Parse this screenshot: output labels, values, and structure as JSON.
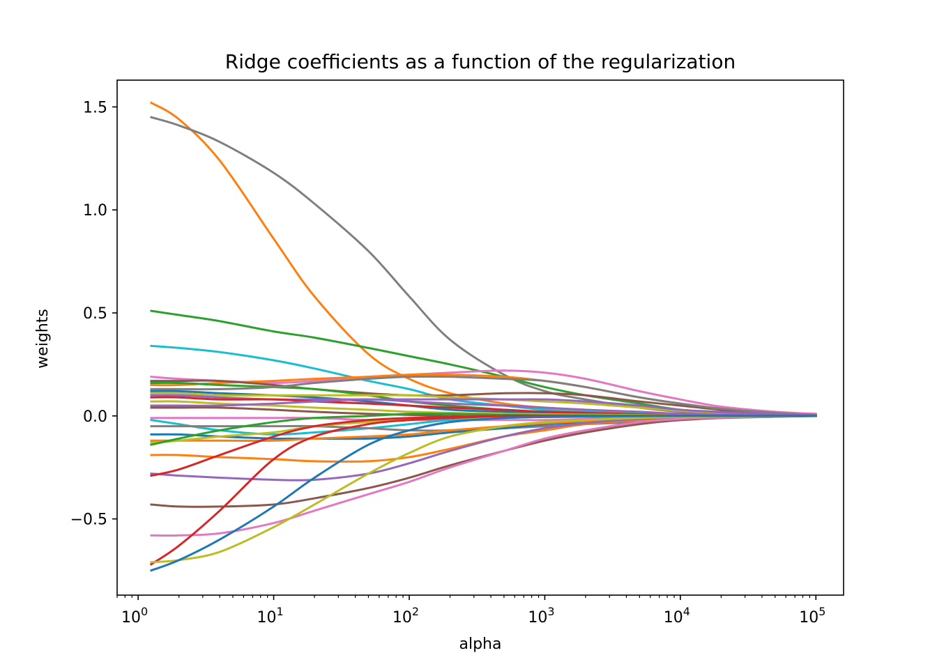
{
  "chart_data": {
    "type": "line",
    "title": "Ridge coefficients as a function of the regularization",
    "xlabel": "alpha",
    "ylabel": "weights",
    "xscale": "log",
    "xlim": [
      0.7,
      160000
    ],
    "ylim": [
      -0.87,
      1.63
    ],
    "grid": false,
    "legend": "none",
    "x": [
      1.25,
      2,
      4,
      10,
      20,
      50,
      100,
      200,
      500,
      1000,
      2000,
      5000,
      10000,
      20000,
      50000,
      100000
    ],
    "xtick_labels": [
      {
        "value": 1,
        "base": "10",
        "exp": "0"
      },
      {
        "value": 10,
        "base": "10",
        "exp": "1"
      },
      {
        "value": 100,
        "base": "10",
        "exp": "2"
      },
      {
        "value": 1000,
        "base": "10",
        "exp": "3"
      },
      {
        "value": 10000,
        "base": "10",
        "exp": "4"
      },
      {
        "value": 100000,
        "base": "10",
        "exp": "5"
      }
    ],
    "yticks": [
      {
        "value": -0.5,
        "label": "−0.5"
      },
      {
        "value": 0.0,
        "label": "0.0"
      },
      {
        "value": 0.5,
        "label": "0.5"
      },
      {
        "value": 1.0,
        "label": "1.0"
      },
      {
        "value": 1.5,
        "label": "1.5"
      }
    ],
    "series": [
      {
        "color": "#ff7f0e",
        "values": [
          1.52,
          1.44,
          1.24,
          0.86,
          0.58,
          0.3,
          0.18,
          0.11,
          0.06,
          0.04,
          0.03,
          0.015,
          0.01,
          0.006,
          0.003,
          0.0
        ]
      },
      {
        "color": "#7f7f7f",
        "values": [
          1.45,
          1.41,
          1.33,
          1.18,
          1.03,
          0.8,
          0.58,
          0.37,
          0.2,
          0.12,
          0.08,
          0.04,
          0.02,
          0.01,
          0.005,
          0.0
        ]
      },
      {
        "color": "#2ca02c",
        "values": [
          0.51,
          0.49,
          0.46,
          0.41,
          0.38,
          0.33,
          0.29,
          0.25,
          0.19,
          0.14,
          0.1,
          0.06,
          0.03,
          0.02,
          0.008,
          0.0
        ]
      },
      {
        "color": "#17becf",
        "values": [
          0.34,
          0.33,
          0.31,
          0.27,
          0.23,
          0.17,
          0.13,
          0.08,
          0.05,
          0.03,
          0.02,
          0.01,
          0.006,
          0.003,
          0.001,
          0.0
        ]
      },
      {
        "color": "#e377c2",
        "values": [
          0.19,
          0.18,
          0.17,
          0.16,
          0.17,
          0.19,
          0.2,
          0.21,
          0.22,
          0.21,
          0.18,
          0.12,
          0.08,
          0.045,
          0.02,
          0.01
        ]
      },
      {
        "color": "#ff7f0e",
        "values": [
          0.15,
          0.15,
          0.16,
          0.17,
          0.18,
          0.19,
          0.2,
          0.2,
          0.19,
          0.17,
          0.14,
          0.09,
          0.06,
          0.035,
          0.015,
          0.005
        ]
      },
      {
        "color": "#8c564b",
        "values": [
          0.17,
          0.17,
          0.17,
          0.15,
          0.13,
          0.11,
          0.1,
          0.1,
          0.11,
          0.11,
          0.1,
          0.07,
          0.05,
          0.03,
          0.012,
          0.005
        ]
      },
      {
        "color": "#2ca02c",
        "values": [
          0.16,
          0.16,
          0.15,
          0.14,
          0.13,
          0.1,
          0.07,
          0.05,
          0.03,
          0.02,
          0.015,
          0.008,
          0.005,
          0.003,
          0.001,
          0.0
        ]
      },
      {
        "color": "#7f7f7f",
        "values": [
          0.13,
          0.13,
          0.13,
          0.14,
          0.16,
          0.18,
          0.19,
          0.19,
          0.18,
          0.17,
          0.14,
          0.09,
          0.06,
          0.035,
          0.015,
          0.005
        ]
      },
      {
        "color": "#1f77b4",
        "values": [
          0.12,
          0.12,
          0.11,
          0.1,
          0.09,
          0.07,
          0.05,
          0.03,
          0.02,
          0.015,
          0.01,
          0.005,
          0.003,
          0.002,
          0.001,
          0.0
        ]
      },
      {
        "color": "#bcbd22",
        "values": [
          0.11,
          0.11,
          0.1,
          0.1,
          0.1,
          0.1,
          0.1,
          0.09,
          0.08,
          0.07,
          0.06,
          0.04,
          0.025,
          0.015,
          0.007,
          0.002
        ]
      },
      {
        "color": "#9467bd",
        "values": [
          0.1,
          0.1,
          0.09,
          0.08,
          0.08,
          0.08,
          0.08,
          0.08,
          0.08,
          0.08,
          0.07,
          0.05,
          0.03,
          0.018,
          0.008,
          0.002
        ]
      },
      {
        "color": "#d62728",
        "values": [
          0.09,
          0.09,
          0.08,
          0.08,
          0.07,
          0.06,
          0.05,
          0.04,
          0.03,
          0.02,
          0.015,
          0.008,
          0.005,
          0.003,
          0.001,
          0.0
        ]
      },
      {
        "color": "#bcbd22",
        "values": [
          0.07,
          0.07,
          0.06,
          0.05,
          0.04,
          0.03,
          0.02,
          0.015,
          0.01,
          0.008,
          0.006,
          0.004,
          0.002,
          0.001,
          0.0,
          0.0
        ]
      },
      {
        "color": "#9467bd",
        "values": [
          0.05,
          0.05,
          0.05,
          0.06,
          0.07,
          0.08,
          0.07,
          0.06,
          0.05,
          0.04,
          0.03,
          0.02,
          0.01,
          0.006,
          0.003,
          0.001
        ]
      },
      {
        "color": "#8c564b",
        "values": [
          0.04,
          0.04,
          0.04,
          0.03,
          0.02,
          0.01,
          0.005,
          0.0,
          -0.005,
          -0.005,
          -0.004,
          -0.003,
          -0.002,
          -0.001,
          0.0,
          0.0
        ]
      },
      {
        "color": "#e377c2",
        "values": [
          -0.01,
          -0.01,
          -0.01,
          -0.01,
          -0.01,
          -0.02,
          -0.02,
          -0.02,
          -0.02,
          -0.02,
          -0.015,
          -0.01,
          -0.006,
          -0.003,
          -0.001,
          0.0
        ]
      },
      {
        "color": "#17becf",
        "values": [
          -0.02,
          -0.04,
          -0.07,
          -0.09,
          -0.08,
          -0.06,
          -0.04,
          -0.02,
          -0.01,
          -0.005,
          -0.003,
          -0.001,
          0.0,
          0.0,
          0.0,
          0.0
        ]
      },
      {
        "color": "#7f7f7f",
        "values": [
          -0.05,
          -0.05,
          -0.05,
          -0.05,
          -0.05,
          -0.06,
          -0.07,
          -0.07,
          -0.06,
          -0.05,
          -0.04,
          -0.03,
          -0.02,
          -0.01,
          -0.004,
          -0.001
        ]
      },
      {
        "color": "#1f77b4",
        "values": [
          -0.09,
          -0.09,
          -0.1,
          -0.11,
          -0.11,
          -0.11,
          -0.1,
          -0.08,
          -0.06,
          -0.04,
          -0.03,
          -0.015,
          -0.008,
          -0.004,
          -0.002,
          0.0
        ]
      },
      {
        "color": "#ff7f0e",
        "values": [
          -0.12,
          -0.12,
          -0.12,
          -0.12,
          -0.11,
          -0.1,
          -0.09,
          -0.07,
          -0.05,
          -0.035,
          -0.025,
          -0.013,
          -0.007,
          -0.004,
          -0.002,
          0.0
        ]
      },
      {
        "color": "#bcbd22",
        "values": [
          -0.13,
          -0.12,
          -0.1,
          -0.08,
          -0.05,
          -0.03,
          -0.02,
          -0.01,
          -0.005,
          -0.003,
          -0.002,
          -0.001,
          0.0,
          0.0,
          0.0,
          0.0
        ]
      },
      {
        "color": "#2ca02c",
        "values": [
          -0.14,
          -0.11,
          -0.07,
          -0.03,
          -0.01,
          0.0,
          0.01,
          0.01,
          0.005,
          0.003,
          0.002,
          0.001,
          0.0,
          0.0,
          0.0,
          0.0
        ]
      },
      {
        "color": "#ff7f0e",
        "values": [
          -0.19,
          -0.19,
          -0.2,
          -0.21,
          -0.22,
          -0.22,
          -0.2,
          -0.16,
          -0.1,
          -0.07,
          -0.04,
          -0.02,
          -0.01,
          -0.005,
          -0.002,
          0.0
        ]
      },
      {
        "color": "#9467bd",
        "values": [
          -0.28,
          -0.29,
          -0.3,
          -0.31,
          -0.31,
          -0.28,
          -0.23,
          -0.17,
          -0.1,
          -0.06,
          -0.035,
          -0.015,
          -0.008,
          -0.004,
          -0.002,
          0.0
        ]
      },
      {
        "color": "#d62728",
        "values": [
          -0.29,
          -0.26,
          -0.19,
          -0.1,
          -0.05,
          -0.02,
          -0.01,
          -0.005,
          0.0,
          0.0,
          0.0,
          0.0,
          0.0,
          0.0,
          0.0,
          0.0
        ]
      },
      {
        "color": "#8c564b",
        "values": [
          -0.43,
          -0.44,
          -0.44,
          -0.43,
          -0.4,
          -0.35,
          -0.3,
          -0.24,
          -0.17,
          -0.12,
          -0.08,
          -0.04,
          -0.02,
          -0.01,
          -0.004,
          0.0
        ]
      },
      {
        "color": "#e377c2",
        "values": [
          -0.58,
          -0.58,
          -0.57,
          -0.52,
          -0.46,
          -0.38,
          -0.32,
          -0.25,
          -0.17,
          -0.11,
          -0.07,
          -0.03,
          -0.015,
          -0.008,
          -0.003,
          0.0
        ]
      },
      {
        "color": "#d62728",
        "values": [
          -0.72,
          -0.63,
          -0.46,
          -0.21,
          -0.1,
          -0.04,
          -0.02,
          -0.01,
          0.0,
          0.0,
          0.0,
          0.0,
          0.0,
          0.0,
          0.0,
          0.0
        ]
      },
      {
        "color": "#bcbd22",
        "values": [
          -0.71,
          -0.7,
          -0.66,
          -0.54,
          -0.43,
          -0.28,
          -0.18,
          -0.1,
          -0.05,
          -0.03,
          -0.02,
          -0.01,
          -0.005,
          -0.002,
          -0.001,
          0.0
        ]
      },
      {
        "color": "#1f77b4",
        "values": [
          -0.75,
          -0.7,
          -0.6,
          -0.44,
          -0.3,
          -0.14,
          -0.07,
          -0.03,
          -0.01,
          -0.005,
          -0.002,
          -0.001,
          0.0,
          0.0,
          0.0,
          0.0
        ]
      }
    ]
  }
}
